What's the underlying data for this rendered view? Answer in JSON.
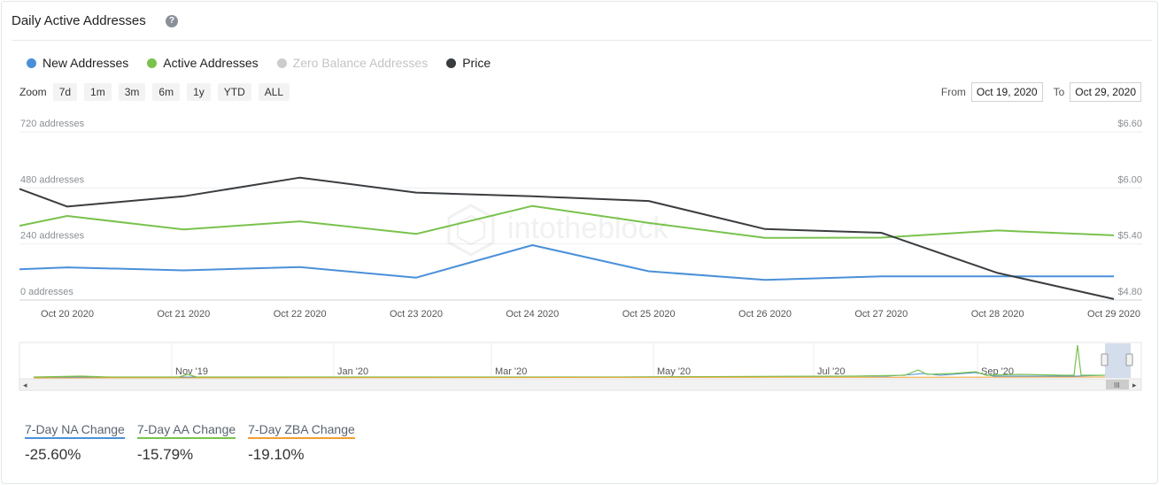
{
  "header": {
    "title": "Daily Active Addresses",
    "help_glyph": "?"
  },
  "legend": [
    {
      "label": "New Addresses",
      "color": "#4a90d9",
      "dimmed": false
    },
    {
      "label": "Active Addresses",
      "color": "#79c24d",
      "dimmed": false
    },
    {
      "label": "Zero Balance Addresses",
      "color": "#cccccc",
      "dimmed": true
    },
    {
      "label": "Price",
      "color": "#3a3d40",
      "dimmed": false
    }
  ],
  "zoom": {
    "label": "Zoom",
    "options": [
      "7d",
      "1m",
      "3m",
      "6m",
      "1y",
      "YTD",
      "ALL"
    ]
  },
  "range": {
    "from_label": "From",
    "from_value": "Oct 19, 2020",
    "to_label": "To",
    "to_value": "Oct 29, 2020"
  },
  "watermark": "intotheblock",
  "chart_data": {
    "type": "line",
    "categories": [
      "Oct 20 2020",
      "Oct 21 2020",
      "Oct 22 2020",
      "Oct 23 2020",
      "Oct 24 2020",
      "Oct 25 2020",
      "Oct 26 2020",
      "Oct 27 2020",
      "Oct 28 2020",
      "Oct 29 2020"
    ],
    "x_tick_labels": [
      "Oct 20 2020",
      "Oct 21 2020",
      "Oct 22 2020",
      "Oct 23 2020",
      "Oct 24 2020",
      "Oct 25 2020",
      "Oct 26 2020",
      "Oct 27 2020",
      "Oct 28 2020",
      "Oct 29 2020"
    ],
    "y_left": {
      "ticks": [
        0,
        240,
        480,
        720
      ],
      "tick_labels": [
        "0 addresses",
        "240 addresses",
        "480 addresses",
        "720 addresses"
      ],
      "range": [
        0,
        720
      ]
    },
    "y_right": {
      "ticks": [
        4.8,
        5.4,
        6.0,
        6.6
      ],
      "tick_labels": [
        "$4.80",
        "$5.40",
        "$6.00",
        "$6.60"
      ],
      "range": [
        4.8,
        6.6
      ]
    },
    "series": [
      {
        "name": "New Addresses",
        "axis": "left",
        "color": "#4a90d9",
        "start": 132,
        "values": [
          140,
          127,
          141,
          96,
          235,
          123,
          86,
          101,
          101,
          101
        ]
      },
      {
        "name": "Active Addresses",
        "axis": "left",
        "color": "#79c24d",
        "start": 318,
        "values": [
          360,
          302,
          337,
          283,
          403,
          330,
          266,
          267,
          298,
          277
        ]
      },
      {
        "name": "Price",
        "axis": "right",
        "color": "#3a3d40",
        "start": 5.99,
        "values": [
          5.8,
          5.91,
          6.11,
          5.95,
          5.91,
          5.86,
          5.56,
          5.52,
          5.09,
          4.81
        ]
      }
    ],
    "grid": true
  },
  "navigator": {
    "labels": [
      "Nov '19",
      "Jan '20",
      "Mar '20",
      "May '20",
      "Jul '20",
      "Sep '20"
    ]
  },
  "stats": [
    {
      "label": "7-Day NA Change",
      "value": "-25.60%",
      "color": "#4a90d9"
    },
    {
      "label": "7-Day AA Change",
      "value": "-15.79%",
      "color": "#79c24d"
    },
    {
      "label": "7-Day ZBA Change",
      "value": "-19.10%",
      "color": "#f0a030"
    }
  ]
}
